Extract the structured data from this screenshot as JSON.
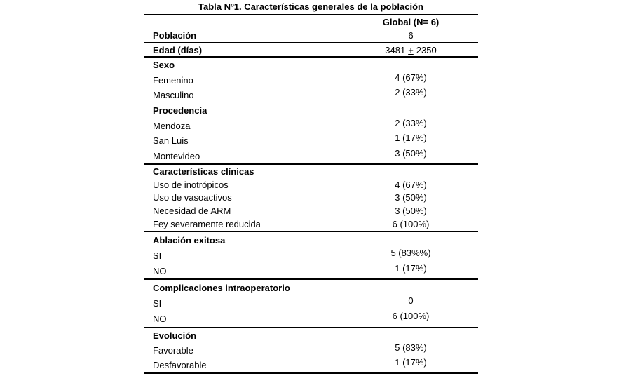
{
  "table": {
    "title": "Tabla Nº1. Características generales de la población",
    "column_header": "Global (N= 6)",
    "poblacion": {
      "label": "Población",
      "value": "6"
    },
    "edad": {
      "label": "Edad (días)",
      "value_num": "3481",
      "value_plus": "+",
      "value_sd": "2350"
    },
    "sections": {
      "sexo": {
        "heading": "Sexo",
        "rows": [
          {
            "label": "Femenino",
            "value": "4 (67%)"
          },
          {
            "label": "Masculino",
            "value": "2 (33%)"
          }
        ]
      },
      "procedencia": {
        "heading": "Procedencia",
        "rows": [
          {
            "label": "Mendoza",
            "value": "2 (33%)"
          },
          {
            "label": "San Luis",
            "value": "1 (17%)"
          },
          {
            "label": "Montevideo",
            "value": "3 (50%)"
          }
        ]
      },
      "clinicas": {
        "heading": "Características clínicas",
        "rows": [
          {
            "label": "Uso de inotrópicos",
            "value": "4 (67%)"
          },
          {
            "label": "Uso de vasoactivos",
            "value": "3 (50%)"
          },
          {
            "label": "Necesidad de ARM",
            "value": "3 (50%)"
          },
          {
            "label": "Fey severamente reducida",
            "value": "6 (100%)"
          }
        ]
      },
      "ablacion": {
        "heading": "Ablación exitosa",
        "rows": [
          {
            "label": "SI",
            "value": "5 (83%%)"
          },
          {
            "label": "NO",
            "value": "1 (17%)"
          }
        ]
      },
      "complicaciones": {
        "heading": "Complicaciones intraoperatorio",
        "rows": [
          {
            "label": "SI",
            "value": "0"
          },
          {
            "label": "NO",
            "value": "6 (100%)"
          }
        ]
      },
      "evolucion": {
        "heading": "Evolución",
        "rows": [
          {
            "label": "Favorable",
            "value": "5 (83%)"
          },
          {
            "label": "Desfavorable",
            "value": "1 (17%)"
          }
        ]
      }
    }
  }
}
